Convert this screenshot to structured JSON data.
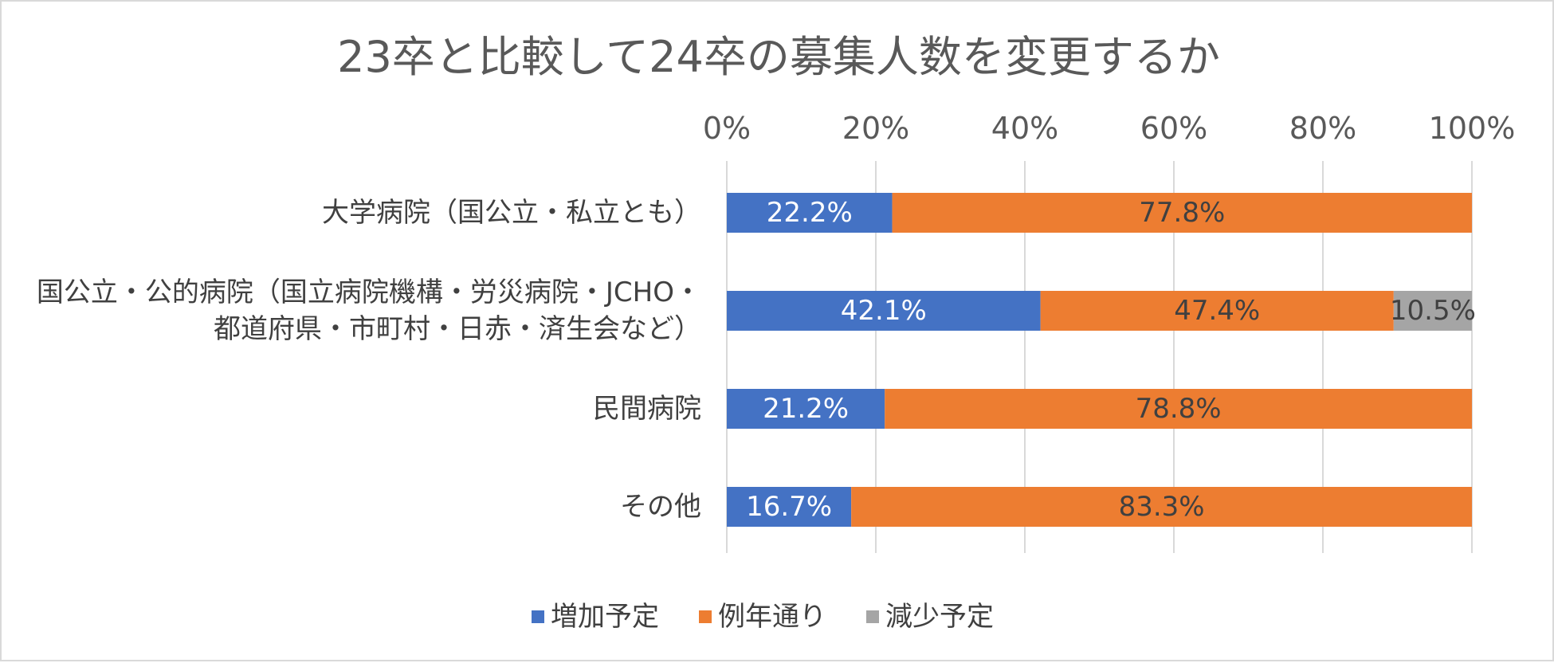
{
  "chart_data": {
    "type": "bar",
    "orientation": "horizontal",
    "stacked": "percent",
    "title": "23卒と比較して24卒の募集人数を変更するか",
    "categories": [
      [
        "大学病院（国公立・私立とも）"
      ],
      [
        "国公立・公的病院（国立病院機構・労災病院・JCHO・",
        "都道府県・市町村・日赤・済生会など）"
      ],
      [
        "民間病院"
      ],
      [
        "その他"
      ]
    ],
    "series": [
      {
        "name": "増加予定",
        "color": "#4472c4",
        "values": [
          22.2,
          42.1,
          21.2,
          16.7
        ],
        "labels": [
          "22.2%",
          "42.1%",
          "21.2%",
          "16.7%"
        ]
      },
      {
        "name": "例年通り",
        "color": "#ed7d31",
        "values": [
          77.8,
          47.4,
          78.8,
          83.3
        ],
        "labels": [
          "77.8%",
          "47.4%",
          "78.8%",
          "83.3%"
        ]
      },
      {
        "name": "減少予定",
        "color": "#a5a5a5",
        "values": [
          0,
          10.5,
          0,
          0
        ],
        "labels": [
          "",
          "10.5%",
          "",
          ""
        ]
      }
    ],
    "x_axis": {
      "position": "top",
      "range": [
        0,
        100
      ],
      "ticks": [
        "0%",
        "20%",
        "40%",
        "60%",
        "80%",
        "100%"
      ]
    },
    "grid": true,
    "legend": "bottom"
  }
}
